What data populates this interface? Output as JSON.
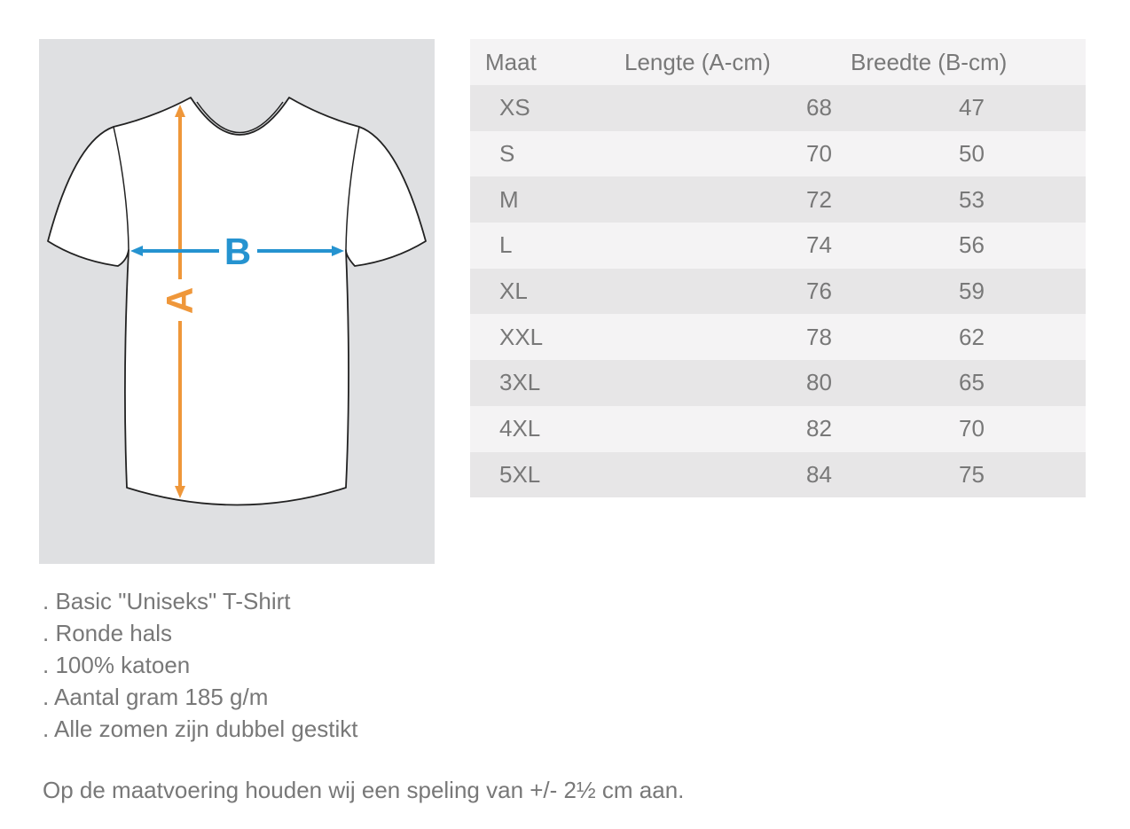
{
  "figure": {
    "label_a": "A",
    "label_b": "B",
    "colors": {
      "length_arrow": "#ef973a",
      "width_arrow": "#2593d0",
      "background": "#dfe0e2"
    }
  },
  "table": {
    "headers": [
      "Maat",
      "Lengte (A-cm)",
      "Breedte (B-cm)"
    ],
    "rows": [
      [
        "XS",
        "68",
        "47"
      ],
      [
        "S",
        "70",
        "50"
      ],
      [
        "M",
        "72",
        "53"
      ],
      [
        "L",
        "74",
        "56"
      ],
      [
        "XL",
        "76",
        "59"
      ],
      [
        "XXL",
        "78",
        "62"
      ],
      [
        "3XL",
        "80",
        "65"
      ],
      [
        "4XL",
        "82",
        "70"
      ],
      [
        "5XL",
        "84",
        "75"
      ]
    ]
  },
  "features": [
    ". Basic \"Uniseks\" T-Shirt",
    ". Ronde hals",
    ". 100% katoen",
    ". Aantal gram 185 g/m",
    ". Alle zomen zijn dubbel gestikt"
  ],
  "note": "Op de maatvoering houden wij een speling van +/- 2½ cm aan."
}
